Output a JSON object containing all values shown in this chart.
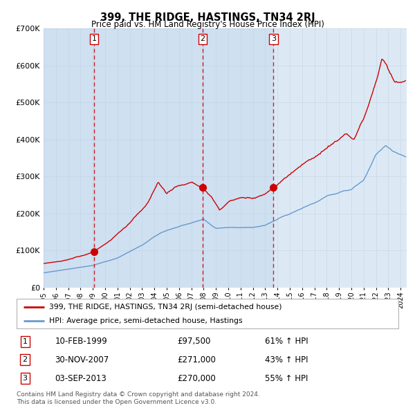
{
  "title": "399, THE RIDGE, HASTINGS, TN34 2RJ",
  "subtitle": "Price paid vs. HM Land Registry's House Price Index (HPI)",
  "legend_line1": "399, THE RIDGE, HASTINGS, TN34 2RJ (semi-detached house)",
  "legend_line2": "HPI: Average price, semi-detached house, Hastings",
  "footer1": "Contains HM Land Registry data © Crown copyright and database right 2024.",
  "footer2": "This data is licensed under the Open Government Licence v3.0.",
  "transactions": [
    {
      "num": 1,
      "date": "10-FEB-1999",
      "price": 97500,
      "pct": "61%",
      "dir": "↑"
    },
    {
      "num": 2,
      "date": "30-NOV-2007",
      "price": 271000,
      "pct": "43%",
      "dir": "↑"
    },
    {
      "num": 3,
      "date": "03-SEP-2013",
      "price": 270000,
      "pct": "55%",
      "dir": "↑"
    }
  ],
  "transaction_dates_decimal": [
    1999.11,
    2007.92,
    2013.67
  ],
  "transaction_prices": [
    97500,
    271000,
    270000
  ],
  "vline_dates_decimal": [
    1999.11,
    2007.92,
    2013.67
  ],
  "red_line_color": "#cc0000",
  "blue_line_color": "#6699cc",
  "vline_color": "#cc0000",
  "bg_color": "#dce9f5",
  "ylim": [
    0,
    700000
  ],
  "xlim_start": 1995.0,
  "xlim_end": 2024.5,
  "ylabel_ticks": [
    "£0",
    "£100K",
    "£200K",
    "£300K",
    "£400K",
    "£500K",
    "£600K",
    "£700K"
  ],
  "ytick_vals": [
    0,
    100000,
    200000,
    300000,
    400000,
    500000,
    600000,
    700000
  ]
}
